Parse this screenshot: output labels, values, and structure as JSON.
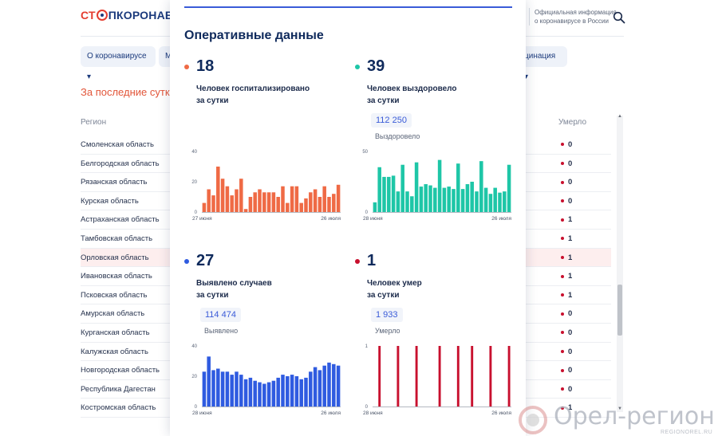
{
  "header": {
    "logo_parts": [
      "СТ",
      "ПКОРОНАВИ"
    ],
    "official_info": "Официальная информация о коронавирусе в России"
  },
  "nav": {
    "items": [
      "О коронавирусе ▾",
      "М",
      "цинация ▾"
    ]
  },
  "main": {
    "section_title": "За последние сутки",
    "table": {
      "col_region": "Регион",
      "col_died": "Умерло",
      "rows": [
        {
          "name": "Смоленская область",
          "died": "0"
        },
        {
          "name": "Белгородская область",
          "died": "0"
        },
        {
          "name": "Рязанская область",
          "died": "0"
        },
        {
          "name": "Курская область",
          "died": "0"
        },
        {
          "name": "Астраханская область",
          "died": "1"
        },
        {
          "name": "Тамбовская область",
          "died": "1"
        },
        {
          "name": "Орловская область",
          "died": "1"
        },
        {
          "name": "Ивановская область",
          "died": "1"
        },
        {
          "name": "Псковская область",
          "died": "1"
        },
        {
          "name": "Амурская область",
          "died": "0"
        },
        {
          "name": "Курганская область",
          "died": "0"
        },
        {
          "name": "Калужская область",
          "died": "0"
        },
        {
          "name": "Новгородская область",
          "died": "0"
        },
        {
          "name": "Республика Дагестан",
          "died": "0"
        },
        {
          "name": "Костромская область",
          "died": "1"
        }
      ]
    }
  },
  "panel": {
    "title": "Оперативные данные",
    "stats": [
      {
        "id": "hosp",
        "number": "18",
        "label_line1": "Человек госпитализировано",
        "label_line2": "за сутки",
        "total": "",
        "total_label": ""
      },
      {
        "id": "recov",
        "number": "39",
        "label_line1": "Человек выздоровело",
        "label_line2": "за сутки",
        "total": "112 250",
        "total_label": "Выздоровело"
      },
      {
        "id": "cases",
        "number": "27",
        "label_line1": "Выявлено случаев",
        "label_line2": "за сутки",
        "total": "114 474",
        "total_label": "Выявлено"
      },
      {
        "id": "deaths",
        "number": "1",
        "label_line1": "Человек умер",
        "label_line2": "за сутки",
        "total": "1 933",
        "total_label": "Умерло"
      }
    ]
  },
  "colors": {
    "hosp": "#ef6a45",
    "recov": "#1ec6a7",
    "cases": "#2f5be0",
    "deaths": "#c8102e",
    "accent": "#3a5bd8"
  },
  "chart_data": [
    {
      "type": "bar",
      "series_id": "hosp",
      "x_start_label": "27 июня",
      "x_end_label": "26 июля",
      "yticks": [
        "40",
        "20",
        "0"
      ],
      "ylim": [
        0,
        40
      ],
      "values": [
        6,
        15,
        11,
        30,
        22,
        17,
        11,
        15,
        22,
        2,
        10,
        13,
        15,
        13,
        13,
        13,
        10,
        17,
        6,
        17,
        17,
        6,
        9,
        13,
        15,
        10,
        17,
        10,
        12,
        18
      ]
    },
    {
      "type": "bar",
      "series_id": "recov",
      "x_start_label": "28 июня",
      "x_end_label": "26 июля",
      "yticks": [
        "50",
        "0"
      ],
      "ylim": [
        0,
        50
      ],
      "values": [
        8,
        37,
        29,
        29,
        30,
        17,
        39,
        17,
        13,
        41,
        21,
        23,
        22,
        20,
        43,
        20,
        21,
        19,
        40,
        19,
        23,
        25,
        17,
        42,
        20,
        15,
        20,
        16,
        17,
        39
      ]
    },
    {
      "type": "bar",
      "series_id": "cases",
      "x_start_label": "28 июня",
      "x_end_label": "26 июля",
      "yticks": [
        "40",
        "20",
        "0"
      ],
      "ylim": [
        0,
        40
      ],
      "values": [
        23,
        33,
        24,
        25,
        23,
        23,
        21,
        23,
        21,
        18,
        19,
        17,
        16,
        15,
        16,
        17,
        19,
        21,
        20,
        21,
        20,
        18,
        19,
        23,
        26,
        24,
        27,
        29,
        28,
        27
      ]
    },
    {
      "type": "bar",
      "series_id": "deaths",
      "x_start_label": "28 июня",
      "x_end_label": "26 июля",
      "yticks": [
        "1",
        "0"
      ],
      "ylim": [
        0,
        1
      ],
      "values": [
        0,
        1,
        0,
        0,
        0,
        1,
        0,
        0,
        0,
        1,
        0,
        0,
        0,
        0,
        1,
        0,
        0,
        0,
        1,
        0,
        0,
        1,
        0,
        0,
        0,
        1,
        0,
        0,
        0,
        1
      ]
    }
  ],
  "watermark": {
    "text": "Орел-регион",
    "sub": "REGIONOREL.RU"
  }
}
